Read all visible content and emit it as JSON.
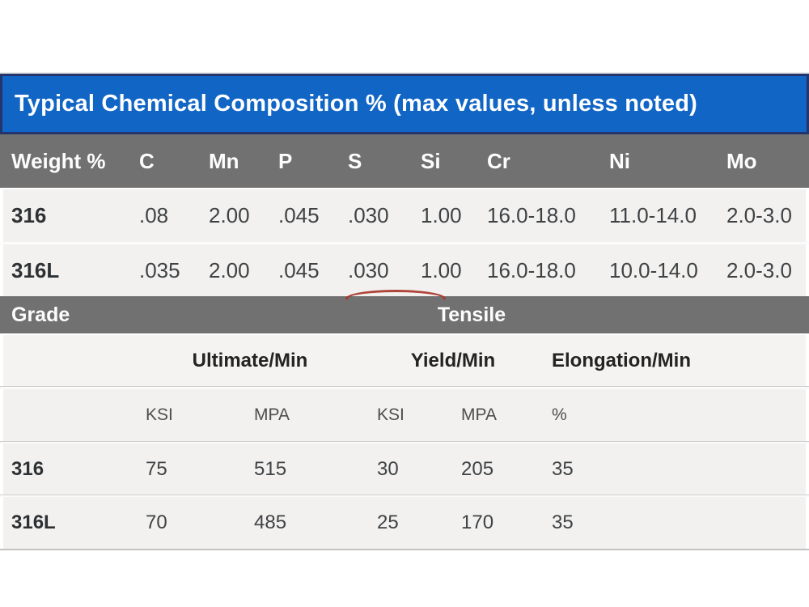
{
  "colors": {
    "header_blue": "#1065c5",
    "header_blue_border": "#23356b",
    "header_gray": "#717171",
    "row_light_gray": "#f2f1ef",
    "annotation_red": "#a8352a"
  },
  "chem_table": {
    "title": "Typical Chemical Composition % (max values, unless noted)",
    "columns": [
      "Weight %",
      "C",
      "Mn",
      "P",
      "S",
      "Si",
      "Cr",
      "Ni",
      "Mo"
    ],
    "rows": [
      {
        "grade": "316",
        "values": [
          ".08",
          "2.00",
          ".045",
          ".030",
          "1.00",
          "16.0-18.0",
          "11.0-14.0",
          "2.0-3.0"
        ]
      },
      {
        "grade": "316L",
        "values": [
          ".035",
          "2.00",
          ".045",
          ".030",
          "1.00",
          "16.0-18.0",
          "10.0-14.0",
          "2.0-3.0"
        ]
      }
    ]
  },
  "tensile_table": {
    "grade_label": "Grade",
    "group_label": "Tensile",
    "subgroups": [
      "Ultimate/Min",
      "Yield/Min",
      "Elongation/Min"
    ],
    "units": [
      "KSI",
      "MPA",
      "KSI",
      "MPA",
      "%"
    ],
    "rows": [
      {
        "grade": "316",
        "values": [
          "75",
          "515",
          "30",
          "205",
          "35"
        ]
      },
      {
        "grade": "316L",
        "values": [
          "70",
          "485",
          "25",
          "170",
          "35"
        ]
      }
    ]
  }
}
